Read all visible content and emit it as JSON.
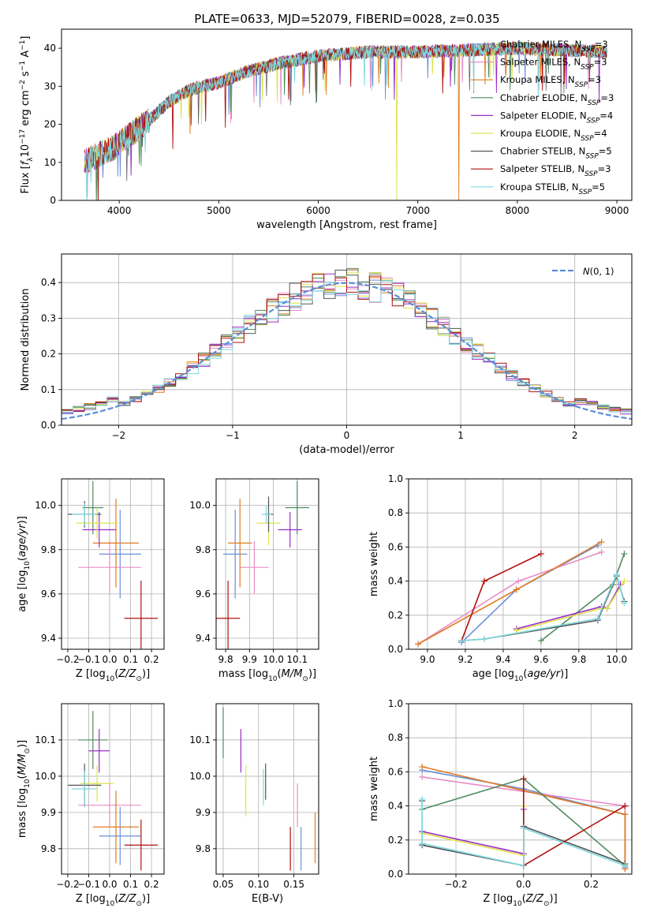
{
  "figure": {
    "title": "PLATE=0633, MJD=52079, FIBERID=0028, z=0.035"
  },
  "colors": {
    "Chabrier MILES": "#6a8fd8",
    "Salpeter MILES": "#e88cc8",
    "Kroupa MILES": "#e07b1f",
    "Chabrier ELODIE": "#4e8a5e",
    "Salpeter ELODIE": "#9a2bc8",
    "Kroupa ELODIE": "#dde34a",
    "Chabrier STELIB": "#555555",
    "Salpeter STELIB": "#b01010",
    "Kroupa STELIB": "#7fd8e0",
    "normal": "#5b8fd6"
  },
  "chart_data": [
    {
      "id": "spectrum",
      "type": "line",
      "title": "PLATE=0633, MJD=52079, FIBERID=0028, z=0.035",
      "xlabel": "wavelength [Angstrom, rest frame]",
      "ylabel": "Flux [f_λ 10^-17 erg cm^-2 s^-1 A^-1]",
      "xlim": [
        3420,
        9150
      ],
      "ylim": [
        0,
        45
      ],
      "xticks": [
        4000,
        5000,
        6000,
        7000,
        8000,
        9000
      ],
      "yticks": [
        0,
        10,
        20,
        30,
        40
      ],
      "grid": false,
      "legend_position": "top-right",
      "continuum": {
        "x": [
          3650,
          3800,
          3950,
          4100,
          4300,
          4500,
          4700,
          5000,
          5300,
          5600,
          6000,
          6500,
          7000,
          7500,
          8000,
          8500,
          8900
        ],
        "y": [
          10,
          12,
          14,
          17,
          21,
          26,
          29,
          31,
          34,
          36,
          38,
          39,
          39,
          39.5,
          40,
          39.5,
          39
        ]
      },
      "series": [
        {
          "name": "Chabrier MILES",
          "nssp": "3"
        },
        {
          "name": "Salpeter MILES",
          "nssp": "3"
        },
        {
          "name": "Kroupa MILES",
          "nssp": "3"
        },
        {
          "name": "Chabrier ELODIE",
          "nssp": "3"
        },
        {
          "name": "Salpeter ELODIE",
          "nssp": "4"
        },
        {
          "name": "Kroupa ELODIE",
          "nssp": "4"
        },
        {
          "name": "Chabrier STELIB",
          "nssp": "5"
        },
        {
          "name": "Salpeter STELIB",
          "nssp": "3"
        },
        {
          "name": "Kroupa STELIB",
          "nssp": "5"
        }
      ],
      "dropouts": [
        {
          "series": "Kroupa ELODIE",
          "x": 6790
        },
        {
          "series": "Kroupa MILES",
          "x": 7410
        }
      ]
    },
    {
      "id": "residuals",
      "type": "line",
      "xlabel": "(data-model)/error",
      "ylabel": "Normed distribution",
      "xlim": [
        -2.5,
        2.5
      ],
      "ylim": [
        0,
        0.48
      ],
      "xticks": [
        -2,
        -1,
        0,
        1,
        2
      ],
      "yticks": [
        0.0,
        0.1,
        0.2,
        0.3,
        0.4
      ],
      "grid": true,
      "legend_position": "top-right",
      "legend_label": "N(0,1)",
      "bin_width": 0.1
    },
    {
      "id": "age-vs-Z",
      "type": "scatter",
      "xlabel": "Z [log10(Z/Z⊙)]",
      "ylabel": "age [log10(age/yr)]",
      "xlim": [
        -0.23,
        0.26
      ],
      "ylim": [
        9.35,
        10.12
      ],
      "xticks": [
        -0.2,
        -0.1,
        0.0,
        0.1,
        0.2
      ],
      "yticks": [
        9.4,
        9.6,
        9.8,
        10.0
      ],
      "grid": true,
      "points": [
        {
          "series": "Chabrier MILES",
          "x": 0.05,
          "y": 9.78,
          "xerr": 0.1,
          "yerr": 0.2
        },
        {
          "series": "Salpeter MILES",
          "x": 0.0,
          "y": 9.72,
          "xerr": 0.15,
          "yerr": 0.12
        },
        {
          "series": "Kroupa MILES",
          "x": 0.03,
          "y": 9.83,
          "xerr": 0.11,
          "yerr": 0.2
        },
        {
          "series": "Chabrier ELODIE",
          "x": -0.08,
          "y": 9.99,
          "xerr": 0.05,
          "yerr": 0.12
        },
        {
          "series": "Salpeter ELODIE",
          "x": -0.05,
          "y": 9.89,
          "xerr": 0.08,
          "yerr": 0.08
        },
        {
          "series": "Kroupa ELODIE",
          "x": -0.06,
          "y": 9.92,
          "xerr": 0.1,
          "yerr": 0.07
        },
        {
          "series": "Chabrier STELIB",
          "x": -0.12,
          "y": 9.96,
          "xerr": 0.08,
          "yerr": 0.06
        },
        {
          "series": "Salpeter STELIB",
          "x": 0.15,
          "y": 9.49,
          "xerr": 0.08,
          "yerr": 0.17
        },
        {
          "series": "Kroupa STELIB",
          "x": -0.12,
          "y": 9.96,
          "xerr": 0.06,
          "yerr": 0.05
        }
      ]
    },
    {
      "id": "age-vs-mass",
      "type": "scatter",
      "xlabel": "mass [log10(M/M⊙)]",
      "ylabel": "",
      "xlim": [
        9.76,
        10.19
      ],
      "ylim": [
        9.35,
        10.12
      ],
      "xticks": [
        9.8,
        9.9,
        10.0,
        10.1
      ],
      "yticks": [
        9.4,
        9.6,
        9.8,
        10.0
      ],
      "grid": true,
      "points": [
        {
          "series": "Chabrier MILES",
          "x": 9.84,
          "y": 9.78,
          "xerr": 0.05,
          "yerr": 0.2
        },
        {
          "series": "Salpeter MILES",
          "x": 9.92,
          "y": 9.72,
          "xerr": 0.06,
          "yerr": 0.12
        },
        {
          "series": "Kroupa MILES",
          "x": 9.86,
          "y": 9.83,
          "xerr": 0.05,
          "yerr": 0.2
        },
        {
          "series": "Chabrier ELODIE",
          "x": 10.1,
          "y": 9.99,
          "xerr": 0.05,
          "yerr": 0.12
        },
        {
          "series": "Salpeter ELODIE",
          "x": 10.07,
          "y": 9.89,
          "xerr": 0.05,
          "yerr": 0.08
        },
        {
          "series": "Kroupa ELODIE",
          "x": 9.98,
          "y": 9.92,
          "xerr": 0.05,
          "yerr": 0.1
        },
        {
          "series": "Chabrier STELIB",
          "x": 9.98,
          "y": 9.96,
          "xerr": 0.02,
          "yerr": 0.08
        },
        {
          "series": "Salpeter STELIB",
          "x": 9.81,
          "y": 9.49,
          "xerr": 0.05,
          "yerr": 0.17
        },
        {
          "series": "Kroupa STELIB",
          "x": 9.97,
          "y": 9.96,
          "xerr": 0.02,
          "yerr": 0.04
        }
      ]
    },
    {
      "id": "weight-vs-age",
      "type": "line",
      "xlabel": "age [log10(age/yr)]",
      "ylabel": "mass weight",
      "xlim": [
        8.9,
        10.08
      ],
      "ylim": [
        0,
        1.0
      ],
      "xticks": [
        9.0,
        9.2,
        9.4,
        9.6,
        9.8,
        10.0
      ],
      "yticks": [
        0.0,
        0.2,
        0.4,
        0.6,
        0.8,
        1.0
      ],
      "grid": true,
      "series": [
        {
          "name": "Chabrier MILES",
          "x": [
            9.18,
            9.47,
            9.9
          ],
          "y": [
            0.04,
            0.35,
            0.61
          ]
        },
        {
          "name": "Salpeter MILES",
          "x": [
            8.95,
            9.48,
            9.92
          ],
          "y": [
            0.03,
            0.4,
            0.57
          ]
        },
        {
          "name": "Kroupa MILES",
          "x": [
            8.95,
            9.47,
            9.92
          ],
          "y": [
            0.03,
            0.35,
            0.63
          ]
        },
        {
          "name": "Chabrier ELODIE",
          "x": [
            9.6,
            9.98,
            10.04
          ],
          "y": [
            0.05,
            0.38,
            0.56
          ]
        },
        {
          "name": "Salpeter ELODIE",
          "x": [
            9.47,
            9.92,
            9.95,
            10.02
          ],
          "y": [
            0.12,
            0.25,
            0.24,
            0.38
          ]
        },
        {
          "name": "Kroupa ELODIE",
          "x": [
            9.47,
            9.92,
            9.95,
            10.04
          ],
          "y": [
            0.11,
            0.24,
            0.24,
            0.4
          ]
        },
        {
          "name": "Chabrier STELIB",
          "x": [
            9.18,
            9.3,
            9.9,
            10.0,
            10.04
          ],
          "y": [
            0.05,
            0.06,
            0.17,
            0.43,
            0.28
          ]
        },
        {
          "name": "Salpeter STELIB",
          "x": [
            9.18,
            9.3,
            9.6
          ],
          "y": [
            0.05,
            0.4,
            0.56
          ]
        },
        {
          "name": "Kroupa STELIB",
          "x": [
            9.18,
            9.3,
            9.9,
            10.0,
            10.04
          ],
          "y": [
            0.05,
            0.06,
            0.18,
            0.44,
            0.27
          ]
        }
      ]
    },
    {
      "id": "mass-vs-Z",
      "type": "scatter",
      "xlabel": "Z [log10(Z/Z⊙)]",
      "ylabel": "mass [log10(M/M⊙)]",
      "xlim": [
        -0.23,
        0.26
      ],
      "ylim": [
        9.73,
        10.2
      ],
      "xticks": [
        -0.2,
        -0.1,
        0.0,
        0.1,
        0.2
      ],
      "yticks": [
        9.8,
        9.9,
        10.0,
        10.1
      ],
      "grid": true,
      "points": [
        {
          "series": "Chabrier MILES",
          "x": 0.05,
          "y": 9.835,
          "xerr": 0.1,
          "yerr": 0.08
        },
        {
          "series": "Salpeter MILES",
          "x": 0.0,
          "y": 9.92,
          "xerr": 0.15,
          "yerr": 0.06
        },
        {
          "series": "Kroupa MILES",
          "x": 0.03,
          "y": 9.86,
          "xerr": 0.11,
          "yerr": 0.1
        },
        {
          "series": "Chabrier ELODIE",
          "x": -0.08,
          "y": 10.1,
          "xerr": 0.07,
          "yerr": 0.08
        },
        {
          "series": "Salpeter ELODIE",
          "x": -0.05,
          "y": 10.07,
          "xerr": 0.05,
          "yerr": 0.06
        },
        {
          "series": "Kroupa ELODIE",
          "x": -0.06,
          "y": 9.98,
          "xerr": 0.08,
          "yerr": 0.05
        },
        {
          "series": "Chabrier STELIB",
          "x": -0.12,
          "y": 9.975,
          "xerr": 0.08,
          "yerr": 0.06
        },
        {
          "series": "Salpeter STELIB",
          "x": 0.15,
          "y": 9.81,
          "xerr": 0.08,
          "yerr": 0.07
        },
        {
          "series": "Kroupa STELIB",
          "x": -0.12,
          "y": 9.965,
          "xerr": 0.06,
          "yerr": 0.05
        }
      ]
    },
    {
      "id": "mass-vs-ebv",
      "type": "scatter",
      "xlabel": "E(B-V)",
      "ylabel": "",
      "xlim": [
        0.04,
        0.185
      ],
      "ylim": [
        9.73,
        10.2
      ],
      "xticks": [
        0.05,
        0.1,
        0.15
      ],
      "yticks": [
        9.8,
        9.9,
        10.0,
        10.1
      ],
      "grid": true,
      "points": [
        {
          "series": "Chabrier ELODIE",
          "x": 0.05,
          "y": 10.12,
          "yerr": 0.07
        },
        {
          "series": "Salpeter ELODIE",
          "x": 0.075,
          "y": 10.07,
          "yerr": 0.06
        },
        {
          "series": "Kroupa ELODIE",
          "x": 0.082,
          "y": 9.96,
          "yerr": 0.07
        },
        {
          "series": "Kroupa STELIB",
          "x": 0.107,
          "y": 9.97,
          "yerr": 0.05
        },
        {
          "series": "Chabrier STELIB",
          "x": 0.11,
          "y": 9.985,
          "yerr": 0.05
        },
        {
          "series": "Salpeter STELIB",
          "x": 0.145,
          "y": 9.8,
          "yerr": 0.06
        },
        {
          "series": "Salpeter MILES",
          "x": 0.155,
          "y": 9.92,
          "yerr": 0.06
        },
        {
          "series": "Chabrier MILES",
          "x": 0.16,
          "y": 9.8,
          "yerr": 0.06
        },
        {
          "series": "Kroupa MILES",
          "x": 0.18,
          "y": 9.83,
          "yerr": 0.07
        }
      ]
    },
    {
      "id": "weight-vs-Z",
      "type": "line",
      "xlabel": "Z [log10(Z/Z⊙)]",
      "ylabel": "mass weight",
      "xlim": [
        -0.34,
        0.32
      ],
      "ylim": [
        0,
        1.0
      ],
      "xticks": [
        -0.2,
        0.0,
        0.2
      ],
      "yticks": [
        0.0,
        0.2,
        0.4,
        0.6,
        0.8,
        1.0
      ],
      "grid": true,
      "series": [
        {
          "name": "Chabrier MILES",
          "x": [
            -0.3,
            0.0,
            0.3,
            0.3
          ],
          "y": [
            0.61,
            0.5,
            0.35,
            0.04
          ]
        },
        {
          "name": "Salpeter MILES",
          "x": [
            -0.3,
            0.3,
            0.3
          ],
          "y": [
            0.57,
            0.4,
            0.03
          ]
        },
        {
          "name": "Kroupa MILES",
          "x": [
            -0.3,
            0.3,
            0.3
          ],
          "y": [
            0.63,
            0.35,
            0.03
          ]
        },
        {
          "name": "Chabrier ELODIE",
          "x": [
            -0.3,
            0.0,
            0.3,
            0.3
          ],
          "y": [
            0.38,
            0.56,
            0.05,
            0.05
          ]
        },
        {
          "name": "Salpeter ELODIE",
          "x": [
            -0.3,
            0.0,
            0.0
          ],
          "y": [
            0.25,
            0.12,
            0.38
          ]
        },
        {
          "name": "Kroupa ELODIE",
          "x": [
            -0.3,
            0.0,
            0.0
          ],
          "y": [
            0.24,
            0.11,
            0.4
          ]
        },
        {
          "name": "Chabrier STELIB",
          "x": [
            -0.3,
            -0.3,
            0.0,
            0.0,
            0.3
          ],
          "y": [
            0.43,
            0.17,
            0.05,
            0.28,
            0.06
          ]
        },
        {
          "name": "Salpeter STELIB",
          "x": [
            0.0,
            0.0,
            0.3,
            0.0
          ],
          "y": [
            0.56,
            0.05,
            0.4,
            0.05
          ]
        },
        {
          "name": "Kroupa STELIB",
          "x": [
            -0.3,
            -0.3,
            0.0,
            0.0,
            0.3
          ],
          "y": [
            0.44,
            0.18,
            0.05,
            0.27,
            0.05
          ]
        }
      ]
    }
  ]
}
